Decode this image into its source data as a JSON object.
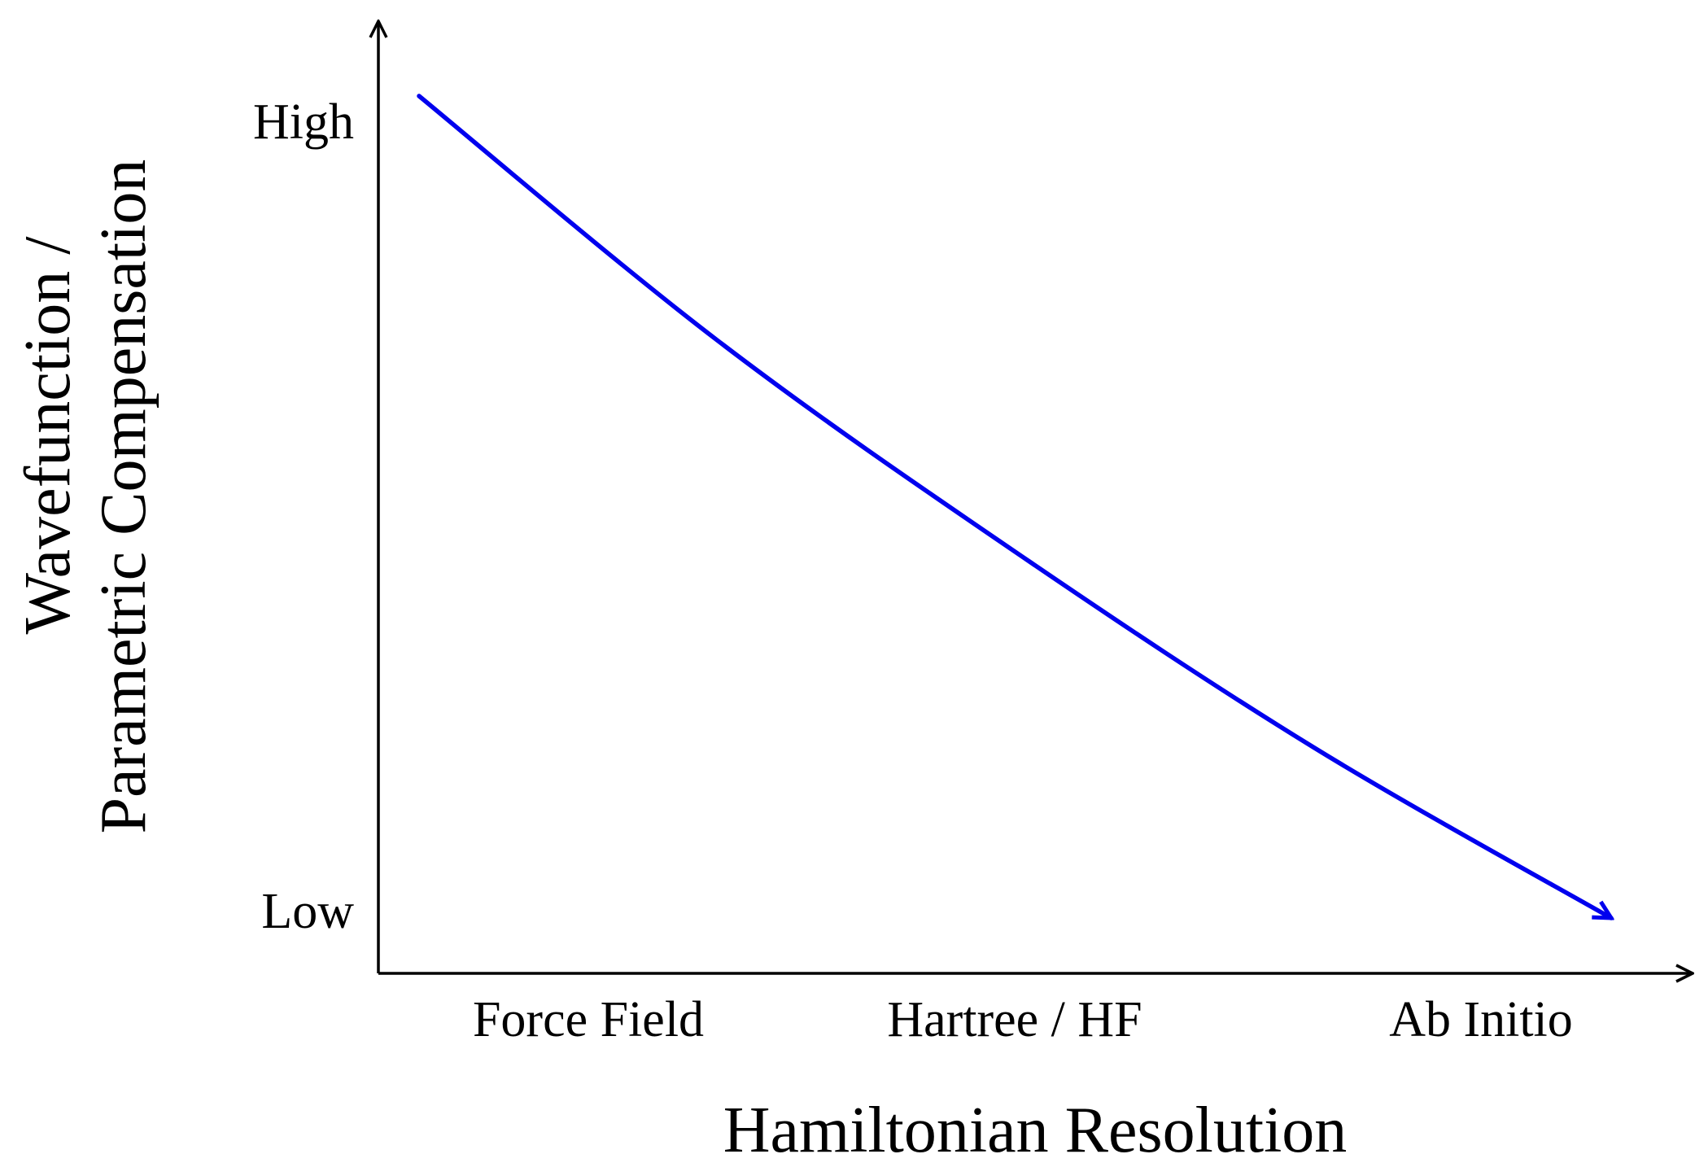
{
  "chart_data": {
    "type": "line",
    "xlabel": "Hamiltonian Resolution",
    "ylabel_lines": [
      "Wavefunction /",
      "Parametric Compensation"
    ],
    "x_categories": [
      "Force Field",
      "Hartree / HF",
      "Ab Initio"
    ],
    "y_levels": [
      "High",
      "Low"
    ],
    "series": [
      {
        "color": "#0000ee",
        "trend": "decreasing",
        "x": [
          0,
          0.25,
          0.5,
          0.75,
          1.0
        ],
        "y": [
          1.03,
          0.73,
          0.47,
          0.23,
          0.02
        ],
        "arrow_at_end": true
      }
    ],
    "axis_color": "#000000",
    "grid": false
  }
}
